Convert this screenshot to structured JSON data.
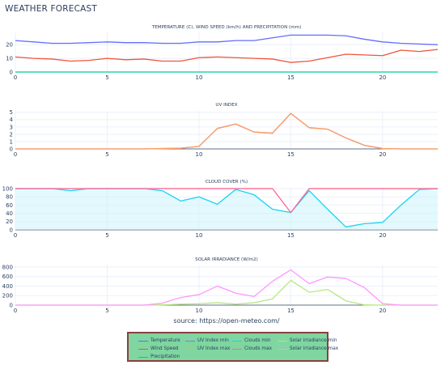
{
  "page": {
    "title": "WEATHER FORECAST"
  },
  "source_label": "source: https://open-meteo.com/",
  "legend": {
    "items": [
      {
        "label": "Temperature",
        "color": "#636efa"
      },
      {
        "label": "Wind Speed",
        "color": "#ef553b"
      },
      {
        "label": "Precipitation",
        "color": "#00cc96"
      },
      {
        "label": "UV Index min",
        "color": "#ab63fa"
      },
      {
        "label": "UV Index max",
        "color": "#ffa15a"
      },
      {
        "label": "Clouds min",
        "color": "#19d3f3"
      },
      {
        "label": "Clouds max",
        "color": "#ff6692"
      },
      {
        "label": "Solar irradiance min",
        "color": "#b6e880"
      },
      {
        "label": "Solar irradiance max",
        "color": "#ff97ff"
      }
    ]
  },
  "chart_data": [
    {
      "type": "line",
      "title": "TEMPERATURE (C), WIND SPEED (km/h) AND PRECIPITATION (mm)",
      "x": [
        0,
        1,
        2,
        3,
        4,
        5,
        6,
        7,
        8,
        9,
        10,
        11,
        12,
        13,
        14,
        15,
        16,
        17,
        18,
        19,
        20,
        21,
        22,
        23
      ],
      "xticks": [
        0,
        5,
        10,
        15,
        20
      ],
      "xlim": [
        0,
        23
      ],
      "ylim": [
        0,
        29
      ],
      "yticks": [
        0,
        10,
        20
      ],
      "series": [
        {
          "color": "#636efa",
          "values": [
            23,
            22,
            21,
            21,
            21.5,
            22,
            21.5,
            21.5,
            21,
            21,
            22,
            22,
            23,
            23,
            25,
            27,
            27,
            27,
            26.5,
            24,
            22,
            21,
            20.5,
            20
          ]
        },
        {
          "color": "#ef553b",
          "values": [
            11,
            10,
            9.5,
            8,
            8.5,
            10,
            9,
            9.5,
            8,
            8,
            10.5,
            11,
            10.5,
            10,
            9.5,
            7,
            8,
            10.5,
            13,
            12.5,
            12,
            16,
            15,
            16.5
          ]
        },
        {
          "color": "#00cc96",
          "values": [
            0,
            0,
            0,
            0,
            0,
            0,
            0,
            0,
            0,
            0,
            0,
            0,
            0,
            0,
            0,
            0,
            0,
            0,
            0,
            0,
            0,
            0,
            0,
            0
          ]
        }
      ]
    },
    {
      "type": "line",
      "title": "UV INDEX",
      "x": [
        0,
        1,
        2,
        3,
        4,
        5,
        6,
        7,
        8,
        9,
        10,
        11,
        12,
        13,
        14,
        15,
        16,
        17,
        18,
        19,
        20,
        21,
        22,
        23
      ],
      "xticks": [
        0,
        5,
        10,
        15,
        20
      ],
      "xlim": [
        0,
        23
      ],
      "ylim": [
        0,
        5.2
      ],
      "yticks": [
        0,
        1,
        2,
        3,
        4,
        5
      ],
      "series": [
        {
          "color": "#ab63fa",
          "values": [
            0,
            0,
            0,
            0,
            0,
            0,
            0,
            0,
            0.05,
            0.1,
            0.35,
            2.8,
            3.4,
            2.3,
            2.15,
            4.85,
            2.9,
            2.7,
            1.5,
            0.5,
            0.05,
            0,
            0,
            0
          ]
        },
        {
          "color": "#ffa15a",
          "values": [
            0,
            0,
            0,
            0,
            0,
            0,
            0,
            0,
            0.05,
            0.1,
            0.35,
            2.8,
            3.4,
            2.3,
            2.15,
            4.85,
            2.9,
            2.7,
            1.5,
            0.5,
            0.05,
            0,
            0,
            0
          ]
        }
      ]
    },
    {
      "type": "line",
      "title": "CLOUD COVER (%)",
      "x": [
        0,
        1,
        2,
        3,
        4,
        5,
        6,
        7,
        8,
        9,
        10,
        11,
        12,
        13,
        14,
        15,
        16,
        17,
        18,
        19,
        20,
        21,
        22,
        23
      ],
      "xticks": [
        0,
        5,
        10,
        15,
        20
      ],
      "xlim": [
        0,
        23
      ],
      "ylim": [
        0,
        104
      ],
      "yticks": [
        0,
        20,
        40,
        60,
        80,
        100
      ],
      "series": [
        {
          "color": "#19d3f3",
          "values": [
            100,
            100,
            100,
            95,
            100,
            100,
            100,
            100,
            95,
            70,
            80,
            62,
            98,
            85,
            50,
            42,
            95,
            50,
            7,
            15,
            18,
            60,
            98,
            100
          ]
        },
        {
          "color": "#ff6692",
          "values": [
            100,
            100,
            100,
            100,
            100,
            100,
            100,
            100,
            100,
            100,
            100,
            100,
            100,
            100,
            100,
            42,
            100,
            100,
            100,
            100,
            100,
            100,
            100,
            100
          ]
        }
      ]
    },
    {
      "type": "line",
      "title": "SOLAR IRRADIANCE (W/m2)",
      "x": [
        0,
        1,
        2,
        3,
        4,
        5,
        6,
        7,
        8,
        9,
        10,
        11,
        12,
        13,
        14,
        15,
        16,
        17,
        18,
        19,
        20,
        21,
        22,
        23
      ],
      "xticks": [
        0,
        5,
        10,
        15,
        20
      ],
      "xlim": [
        0,
        23
      ],
      "ylim": [
        0,
        850
      ],
      "yticks": [
        0,
        200,
        400,
        600,
        800
      ],
      "series": [
        {
          "color": "#b6e880",
          "values": [
            0,
            0,
            0,
            0,
            0,
            0,
            0,
            0,
            5,
            20,
            30,
            50,
            20,
            50,
            130,
            520,
            270,
            330,
            90,
            5,
            0,
            0,
            0,
            0
          ]
        },
        {
          "color": "#ff97ff",
          "values": [
            0,
            0,
            0,
            0,
            0,
            0,
            0,
            0,
            40,
            160,
            220,
            400,
            250,
            180,
            500,
            740,
            450,
            590,
            560,
            370,
            30,
            0,
            0,
            0
          ]
        }
      ]
    }
  ]
}
